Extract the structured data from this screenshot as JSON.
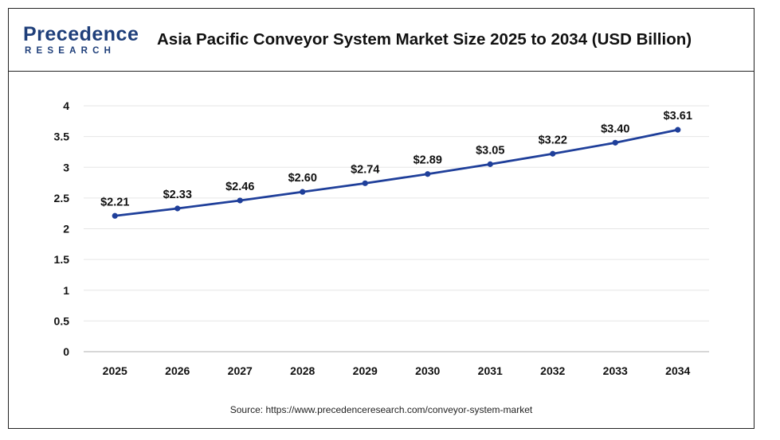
{
  "brand": {
    "logo_top": "Precedence",
    "logo_bottom": "RESEARCH"
  },
  "title": "Asia Pacific Conveyor System Market Size 2025 to 2034 (USD Billion)",
  "source": "Source: https://www.precedenceresearch.com/conveyor-system-market",
  "colors": {
    "line": "#1f3f9a",
    "brand": "#1f3f7a",
    "grid": "#e6e6e6",
    "axis": "#bfbfbf"
  },
  "chart_data": {
    "type": "line",
    "title": "Asia Pacific Conveyor System Market Size 2025 to 2034 (USD Billion)",
    "xlabel": "",
    "ylabel": "",
    "categories": [
      "2025",
      "2026",
      "2027",
      "2028",
      "2029",
      "2030",
      "2031",
      "2032",
      "2033",
      "2034"
    ],
    "series": [
      {
        "values": [
          2.21,
          2.33,
          2.46,
          2.6,
          2.74,
          2.89,
          3.05,
          3.22,
          3.4,
          3.61
        ],
        "labels": [
          "$2.21",
          "$2.33",
          "$2.46",
          "$2.60",
          "$2.74",
          "$2.89",
          "$3.05",
          "$3.22",
          "$3.40",
          "$3.61"
        ]
      }
    ],
    "ylim": [
      0,
      4
    ],
    "yticks": [
      "0",
      "0.5",
      "1",
      "1.5",
      "2",
      "2.5",
      "3",
      "3.5",
      "4"
    ],
    "ytick_values": [
      0,
      0.5,
      1,
      1.5,
      2,
      2.5,
      3,
      3.5,
      4
    ],
    "grid": true,
    "legend": "none"
  }
}
